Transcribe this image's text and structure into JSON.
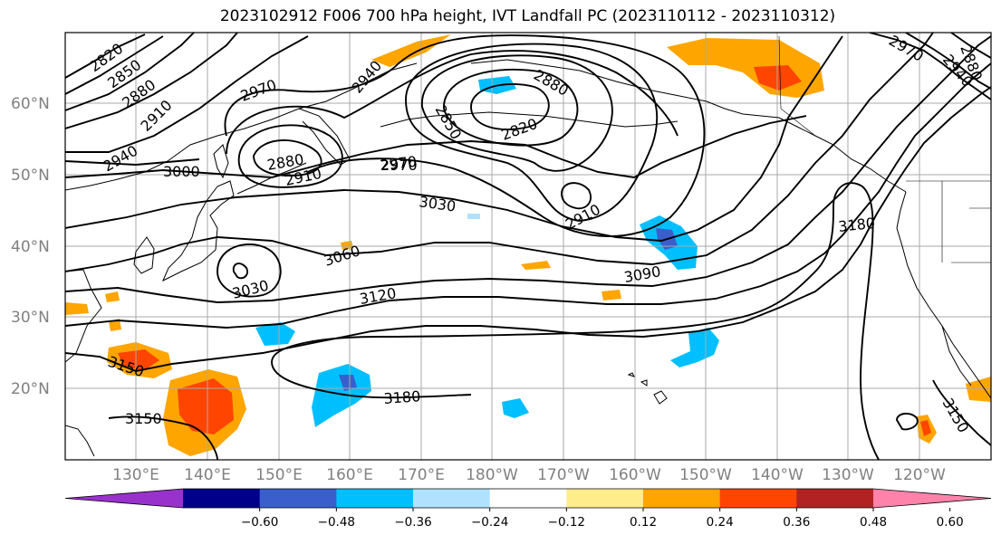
{
  "title": "2023102912 F006 700 hPa height, IVT Landfall PC (2023110112 - 2023110312)",
  "latitude_labels": [
    "60°N",
    "50°N",
    "40°N",
    "30°N",
    "20°N"
  ],
  "longitude_labels": [
    "130°E",
    "140°E",
    "150°E",
    "160°E",
    "170°E",
    "180°W",
    "170°W",
    "160°W",
    "150°W",
    "140°W",
    "130°W",
    "120°W"
  ],
  "contour_labels": [
    "2820",
    "2850",
    "2880",
    "2910",
    "2940",
    "2970",
    "3000",
    "2880",
    "2910",
    "2940",
    "2970",
    "2880",
    "2850",
    "2820",
    "2910",
    "2970",
    "3030",
    "3060",
    "3030",
    "3120",
    "3090",
    "3180",
    "3150",
    "3150",
    "3180",
    "3150",
    "2970",
    "2940",
    "2880"
  ],
  "colorbar": {
    "ticks": [
      "−0.60",
      "−0.48",
      "−0.36",
      "−0.24",
      "−0.12",
      "0.12",
      "0.24",
      "0.36",
      "0.48",
      "0.60"
    ],
    "colors": [
      "#9932cc",
      "#00008b",
      "#3a5fcd",
      "#00bfff",
      "#b0e2ff",
      "#ffffff",
      "#ffec8b",
      "#ffa500",
      "#ff4500",
      "#b22222",
      "#ff82ab"
    ]
  }
}
